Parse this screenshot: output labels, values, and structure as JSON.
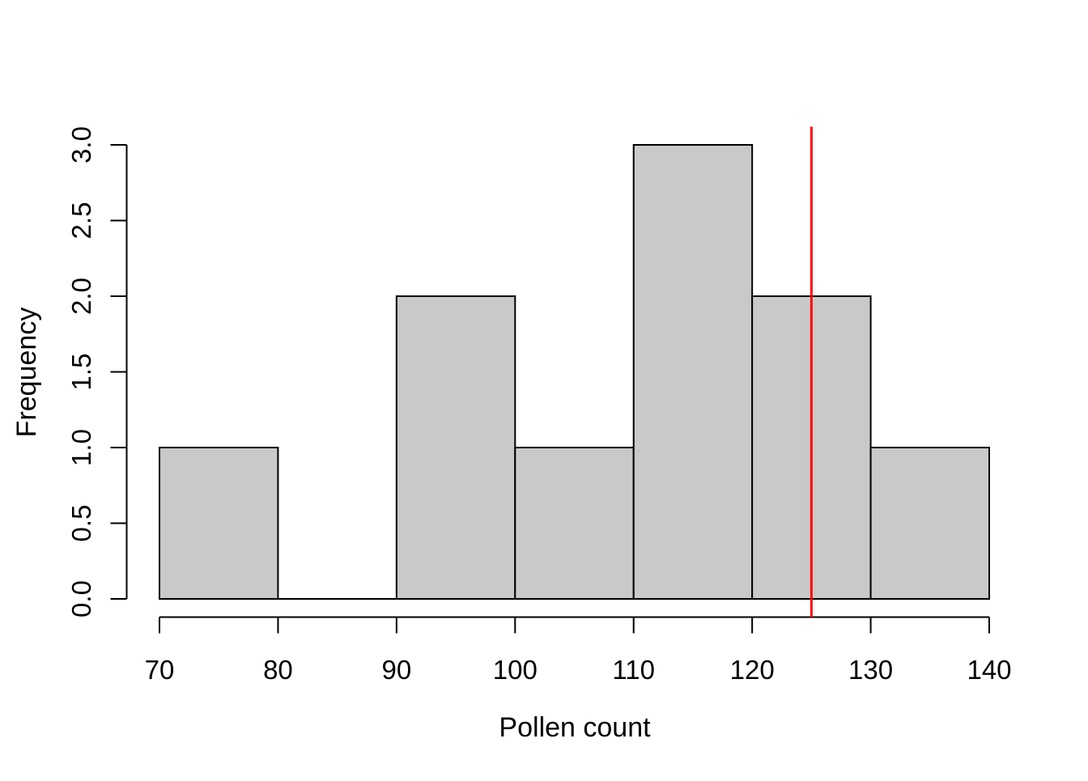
{
  "chart_data": {
    "type": "bar",
    "subtype": "histogram",
    "title": "",
    "xlabel": "Pollen count",
    "ylabel": "Frequency",
    "bins": [
      {
        "start": 70,
        "end": 80,
        "count": 1
      },
      {
        "start": 80,
        "end": 90,
        "count": 0
      },
      {
        "start": 90,
        "end": 100,
        "count": 2
      },
      {
        "start": 100,
        "end": 110,
        "count": 1
      },
      {
        "start": 110,
        "end": 120,
        "count": 3
      },
      {
        "start": 120,
        "end": 130,
        "count": 2
      },
      {
        "start": 130,
        "end": 140,
        "count": 1
      }
    ],
    "x_ticks": [
      70,
      80,
      90,
      100,
      110,
      120,
      130,
      140
    ],
    "y_ticks": [
      "0.0",
      "0.5",
      "1.0",
      "1.5",
      "2.0",
      "2.5",
      "3.0"
    ],
    "xlim": [
      70,
      140
    ],
    "ylim": [
      0,
      3
    ],
    "grid": false,
    "legend": null,
    "vline": {
      "x": 125,
      "color": "#ff0000"
    },
    "colors": {
      "bar_fill": "#c9c9c9",
      "bar_border": "#000000",
      "axis": "#000000",
      "background": "#ffffff"
    }
  }
}
